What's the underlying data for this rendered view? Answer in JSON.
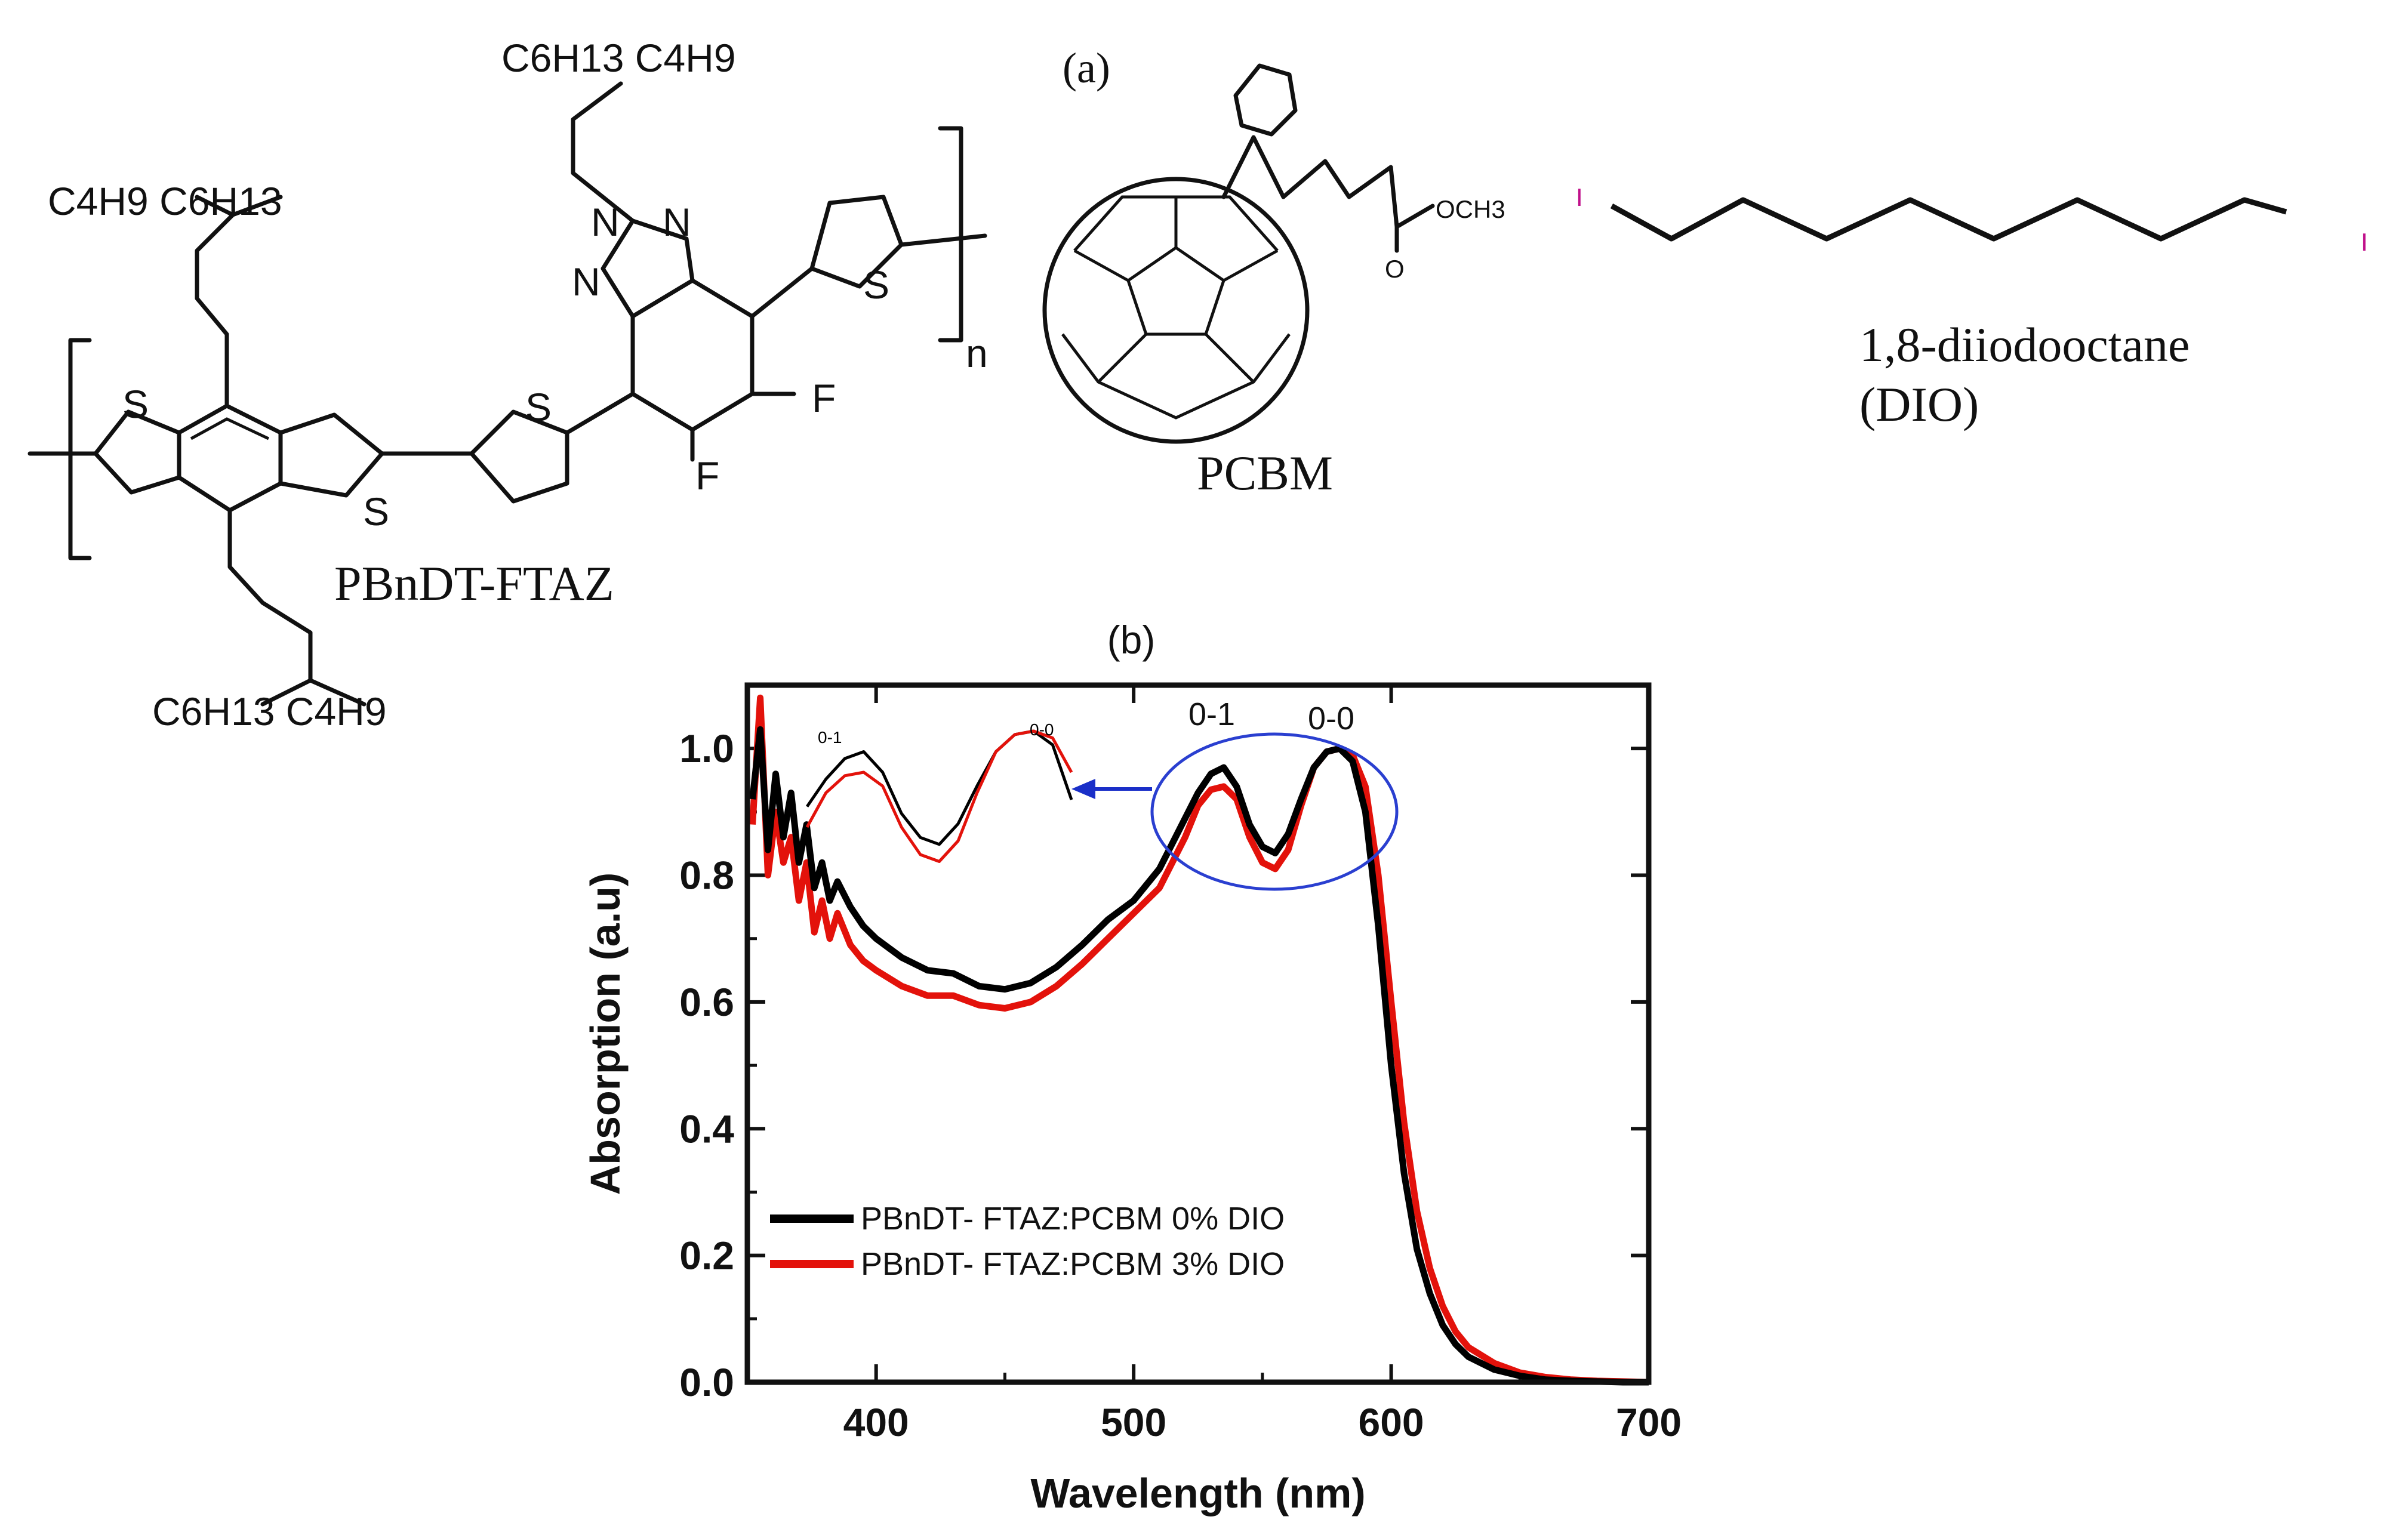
{
  "panel_a": {
    "label": "(a)",
    "polymer": {
      "name": "PBnDT-FTAZ",
      "side_chain_upper_left": "C4H9  C6H13",
      "side_chain_top": "C6H13  C4H9",
      "side_chain_bottom": "C6H13  C4H9",
      "atoms": {
        "sulfur": "S",
        "nitrogen": "N",
        "fluorine": "F",
        "repeat": "n"
      }
    },
    "pcbm": {
      "name": "PCBM",
      "ester": "OCH3",
      "oxygen": "O"
    },
    "dio": {
      "name": "1,8-diiodooctane",
      "abbr": "(DIO)",
      "iodine": "I"
    }
  },
  "chart_data": {
    "type": "line",
    "panel_label": "(b)",
    "xlabel": "Wavelength (nm)",
    "ylabel": "Absorption (a.u)",
    "xlim": [
      350,
      700
    ],
    "ylim": [
      0,
      1.1
    ],
    "xticks": [
      400,
      500,
      600,
      700
    ],
    "yticks": [
      0.0,
      0.2,
      0.4,
      0.6,
      0.8,
      1.0
    ],
    "peak_labels": [
      "0-1",
      "0-0"
    ],
    "inset_peak_labels": [
      "0-1",
      "0-0"
    ],
    "legend_position": "bottom-left",
    "series": [
      {
        "name": "PBnDT- FTAZ:PCBM 0% DIO",
        "color": "#000000",
        "x": [
          352,
          355,
          358,
          361,
          364,
          367,
          370,
          373,
          376,
          379,
          382,
          385,
          390,
          395,
          400,
          410,
          420,
          430,
          440,
          450,
          460,
          470,
          480,
          490,
          500,
          510,
          520,
          525,
          530,
          535,
          540,
          545,
          550,
          555,
          560,
          565,
          570,
          575,
          580,
          585,
          590,
          595,
          600,
          605,
          610,
          615,
          620,
          625,
          630,
          640,
          650,
          660,
          670,
          680,
          690,
          700
        ],
        "y": [
          0.92,
          1.03,
          0.84,
          0.96,
          0.86,
          0.93,
          0.82,
          0.88,
          0.78,
          0.82,
          0.76,
          0.79,
          0.75,
          0.72,
          0.7,
          0.67,
          0.65,
          0.645,
          0.625,
          0.62,
          0.63,
          0.655,
          0.69,
          0.73,
          0.76,
          0.81,
          0.89,
          0.93,
          0.96,
          0.97,
          0.94,
          0.88,
          0.845,
          0.835,
          0.865,
          0.92,
          0.97,
          0.995,
          1.0,
          0.98,
          0.9,
          0.72,
          0.5,
          0.33,
          0.21,
          0.14,
          0.09,
          0.06,
          0.04,
          0.02,
          0.01,
          0.004,
          0.002,
          0.001,
          0.0,
          0.0
        ]
      },
      {
        "name": "PBnDT- FTAZ:PCBM 3% DIO",
        "color": "#e3120b",
        "x": [
          352,
          355,
          358,
          361,
          364,
          367,
          370,
          373,
          376,
          379,
          382,
          385,
          390,
          395,
          400,
          410,
          420,
          430,
          440,
          450,
          460,
          470,
          480,
          490,
          500,
          510,
          520,
          525,
          530,
          535,
          540,
          545,
          550,
          555,
          560,
          565,
          570,
          575,
          580,
          585,
          590,
          595,
          600,
          605,
          610,
          615,
          620,
          625,
          630,
          640,
          650,
          660,
          670,
          680,
          690,
          700
        ],
        "y": [
          0.88,
          1.08,
          0.8,
          0.9,
          0.82,
          0.86,
          0.76,
          0.82,
          0.71,
          0.76,
          0.7,
          0.74,
          0.69,
          0.665,
          0.65,
          0.625,
          0.61,
          0.61,
          0.595,
          0.59,
          0.6,
          0.625,
          0.66,
          0.7,
          0.74,
          0.78,
          0.86,
          0.91,
          0.935,
          0.94,
          0.92,
          0.86,
          0.82,
          0.81,
          0.84,
          0.91,
          0.97,
          0.995,
          1.0,
          0.99,
          0.94,
          0.8,
          0.6,
          0.41,
          0.27,
          0.18,
          0.12,
          0.08,
          0.055,
          0.03,
          0.015,
          0.008,
          0.004,
          0.002,
          0.001,
          0.0
        ]
      }
    ]
  }
}
